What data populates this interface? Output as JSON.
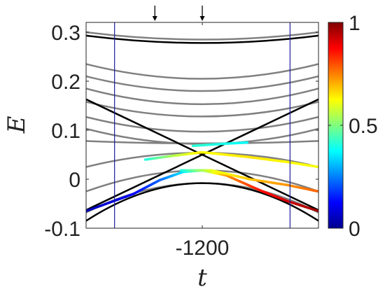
{
  "chart_data": {
    "type": "line",
    "xlabel": "t",
    "ylabel": "E",
    "xticks": [
      {
        "value": -1200,
        "label": "-1200"
      }
    ],
    "yticks": [
      {
        "value": -0.1,
        "label": "-0.1"
      },
      {
        "value": 0,
        "label": "0"
      },
      {
        "value": 0.1,
        "label": "0.1"
      },
      {
        "value": 0.2,
        "label": "0.2"
      },
      {
        "value": 0.3,
        "label": "0.3"
      }
    ],
    "xlim": [
      -1445,
      -955
    ],
    "ylim": [
      -0.1,
      0.32
    ],
    "grid": false,
    "legend": "none",
    "colorbar": {
      "min": 0,
      "max": 1,
      "ticks": [
        {
          "value": 1,
          "label": "1"
        },
        {
          "value": 0.5,
          "label": "0.5"
        },
        {
          "value": 0,
          "label": "0"
        }
      ],
      "colormap": "jet"
    },
    "vertical_lines": [
      -1385,
      -1015
    ],
    "arrow_markers": [
      -1300,
      -1200
    ],
    "gray_levels": [
      {
        "x": [
          -1445,
          -1200,
          -955
        ],
        "y": [
          0.3,
          0.285,
          0.3
        ]
      },
      {
        "x": [
          -1445,
          -1200,
          -955
        ],
        "y": [
          0.235,
          0.205,
          0.235
        ]
      },
      {
        "x": [
          -1445,
          -1200,
          -955
        ],
        "y": [
          0.21,
          0.18,
          0.21
        ]
      },
      {
        "x": [
          -1445,
          -1200,
          -955
        ],
        "y": [
          0.185,
          0.153,
          0.185
        ]
      },
      {
        "x": [
          -1445,
          -1200,
          -955
        ],
        "y": [
          0.158,
          0.128,
          0.158
        ]
      },
      {
        "x": [
          -1445,
          -1200,
          -955
        ],
        "y": [
          0.127,
          0.097,
          0.127
        ]
      },
      {
        "x": [
          -1445,
          -1200,
          -955
        ],
        "y": [
          0.103,
          0.072,
          0.103
        ]
      },
      {
        "x": [
          -1445,
          -1200,
          -955
        ],
        "y": [
          0.078,
          0.073,
          0.078
        ]
      },
      {
        "x": [
          -1445,
          -1200,
          -955
        ],
        "y": [
          0.025,
          0.054,
          0.025
        ]
      },
      {
        "x": [
          -1445,
          -1200,
          -955
        ],
        "y": [
          -0.025,
          0.018,
          -0.025
        ]
      },
      {
        "x": [
          -1445,
          -1200,
          -955
        ],
        "y": [
          -0.068,
          -0.008,
          -0.068
        ]
      }
    ],
    "black_lines": [
      {
        "x": [
          -1445,
          -1200,
          -955
        ],
        "y": [
          0.293,
          0.278,
          0.293
        ]
      },
      {
        "x": [
          -1445,
          -955
        ],
        "y": [
          0.163,
          -0.063
        ]
      },
      {
        "x": [
          -1445,
          -955
        ],
        "y": [
          -0.063,
          0.163
        ]
      },
      {
        "x": [
          -1445,
          -1200,
          -955
        ],
        "y": [
          -0.085,
          -0.008,
          -0.085
        ]
      }
    ],
    "colored_segments": [
      {
        "x": [
          -1445,
          -1345,
          -1290,
          -1240,
          -1200
        ],
        "y": [
          -0.065,
          -0.03,
          -0.002,
          0.015,
          0.018
        ],
        "c": [
          0.05,
          0.12,
          0.22,
          0.35,
          0.5
        ]
      },
      {
        "x": [
          -1200,
          -1150,
          -1080,
          -1020,
          -955
        ],
        "y": [
          0.018,
          0.008,
          -0.022,
          -0.045,
          -0.065
        ],
        "c": [
          0.5,
          0.72,
          0.85,
          0.92,
          0.97
        ]
      },
      {
        "x": [
          -1245,
          -1180,
          -1100,
          -1020,
          -955
        ],
        "y": [
          0.018,
          0.018,
          0.0,
          -0.012,
          -0.025
        ],
        "c": [
          0.4,
          0.6,
          0.68,
          0.73,
          0.78
        ]
      },
      {
        "x": [
          -1320,
          -1260,
          -1200
        ],
        "y": [
          0.04,
          0.048,
          0.055
        ],
        "c": [
          0.4,
          0.55,
          0.65
        ]
      },
      {
        "x": [
          -1200,
          -1100,
          -1020,
          -955
        ],
        "y": [
          0.055,
          0.045,
          0.035,
          0.025
        ],
        "c": [
          0.62,
          0.65,
          0.63,
          0.62
        ]
      },
      {
        "x": [
          -1220,
          -1160,
          -1105
        ],
        "y": [
          0.068,
          0.072,
          0.075
        ],
        "c": [
          0.42,
          0.4,
          0.38
        ]
      }
    ]
  }
}
